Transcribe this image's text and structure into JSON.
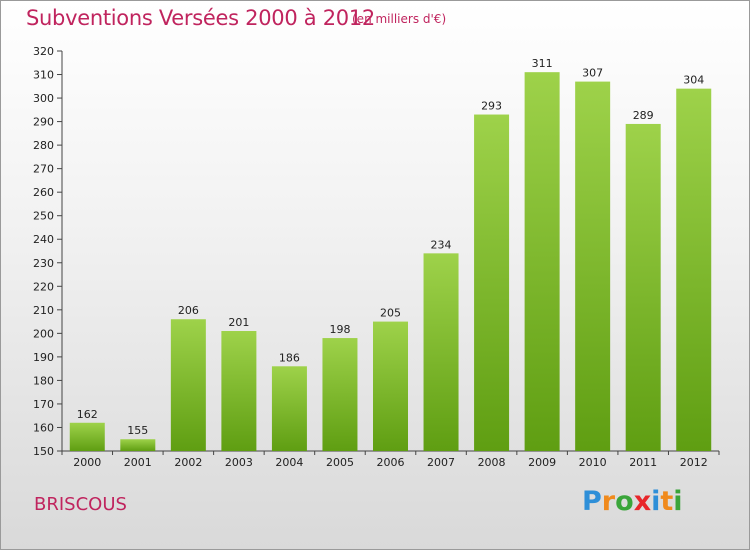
{
  "header": {
    "title": "Subventions Versées 2000 à 2012",
    "subtitle": "(en milliers d'€)"
  },
  "place_name": "BRISCOUS",
  "brand": {
    "letters": [
      "P",
      "r",
      "o",
      "x",
      "i",
      "t",
      "i"
    ],
    "colors": [
      "#2e8fd8",
      "#f08a1c",
      "#3aa53a",
      "#e8262a",
      "#2e8fd8",
      "#f08a1c",
      "#3aa53a"
    ]
  },
  "chart_data": {
    "type": "bar",
    "categories": [
      "2000",
      "2001",
      "2002",
      "2003",
      "2004",
      "2005",
      "2006",
      "2007",
      "2008",
      "2009",
      "2010",
      "2011",
      "2012"
    ],
    "values": [
      162,
      155,
      206,
      201,
      186,
      198,
      205,
      234,
      293,
      311,
      307,
      289,
      304
    ],
    "ylim": [
      150,
      320
    ],
    "ytick_step": 10,
    "grid": false,
    "bar_color_top": "#9ed24a",
    "bar_color_bottom": "#5f9e12"
  }
}
